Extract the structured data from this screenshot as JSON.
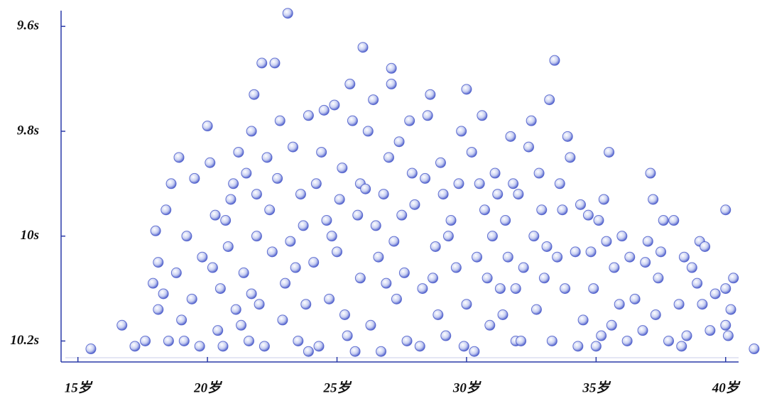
{
  "chart_data": {
    "type": "scatter",
    "color": "#4455c8",
    "xlim": [
      14.35,
      40.5
    ],
    "ylim": [
      10.24,
      9.57
    ],
    "xticks": [
      {
        "value": 15,
        "label": "15岁"
      },
      {
        "value": 20,
        "label": "20岁"
      },
      {
        "value": 25,
        "label": "25岁"
      },
      {
        "value": 30,
        "label": "30岁"
      },
      {
        "value": 35,
        "label": "35岁"
      },
      {
        "value": 40,
        "label": "40岁"
      }
    ],
    "yticks": [
      {
        "value": 9.6,
        "label": "9.6s"
      },
      {
        "value": 9.8,
        "label": "9.8s"
      },
      {
        "value": 10,
        "label": "10s"
      },
      {
        "value": 10.2,
        "label": "10.2s"
      }
    ],
    "x": [
      16.7,
      17.2,
      17.6,
      18.1,
      18.1,
      18.3,
      18.5,
      18.9,
      18.8,
      18.6,
      19.0,
      19.2,
      19.5,
      19.4,
      19.7,
      19.8,
      18.0,
      17.9,
      18.4,
      19.1,
      20.0,
      20.1,
      20.3,
      20.5,
      20.4,
      20.8,
      20.9,
      21.1,
      21.2,
      21.4,
      21.5,
      21.6,
      21.7,
      21.8,
      21.9,
      20.6,
      20.2,
      21.0,
      21.3,
      20.7,
      21.7,
      21.9,
      22.1,
      22.6,
      22.3,
      22.5,
      22.8,
      22.2,
      22.9,
      22.4,
      23.0,
      23.1,
      23.3,
      23.5,
      23.6,
      23.8,
      23.9,
      23.2,
      22.7,
      23.4,
      23.7,
      22.0,
      23.9,
      24.2,
      24.5,
      24.7,
      24.9,
      25.0,
      25.2,
      25.4,
      25.6,
      25.8,
      25.9,
      25.5,
      24.3,
      24.6,
      24.1,
      25.1,
      25.3,
      24.8,
      25.7,
      24.4,
      25.9,
      26.0,
      26.2,
      26.4,
      26.6,
      26.8,
      27.0,
      27.1,
      27.1,
      27.3,
      27.5,
      27.7,
      27.9,
      26.3,
      26.5,
      26.9,
      27.2,
      27.4,
      27.6,
      26.1,
      27.8,
      26.7,
      28.0,
      28.3,
      28.5,
      28.6,
      28.8,
      29.0,
      29.2,
      29.4,
      29.6,
      29.8,
      30.0,
      30.0,
      28.2,
      28.4,
      28.9,
      29.1,
      29.3,
      29.7,
      29.9,
      28.7,
      30.2,
      30.4,
      30.6,
      30.7,
      30.9,
      31.1,
      31.3,
      31.5,
      31.7,
      31.9,
      30.3,
      30.8,
      31.0,
      31.2,
      31.4,
      31.6,
      31.8,
      30.5,
      31.9,
      32.0,
      32.2,
      32.4,
      32.5,
      32.7,
      32.9,
      33.1,
      33.2,
      33.4,
      33.3,
      33.6,
      33.8,
      33.9,
      32.1,
      32.6,
      33.0,
      33.5,
      33.7,
      32.8,
      34.0,
      34.2,
      34.4,
      34.5,
      34.7,
      34.9,
      35.1,
      35.2,
      35.3,
      35.5,
      35.7,
      35.9,
      34.3,
      34.8,
      35.0,
      35.6,
      35.4,
      36.0,
      36.3,
      36.5,
      36.8,
      37.0,
      37.1,
      37.2,
      37.4,
      37.6,
      37.8,
      36.2,
      36.9,
      37.3,
      37.5,
      38.0,
      38.2,
      38.4,
      38.5,
      38.9,
      39.0,
      39.1,
      39.4,
      39.6,
      40.0,
      40.0,
      40.1,
      40.2,
      40.3,
      38.3,
      38.7,
      39.2,
      40.0,
      15.5,
      41.1
    ],
    "values": [
      10.17,
      10.21,
      10.2,
      10.05,
      10.14,
      10.11,
      10.2,
      9.85,
      10.07,
      9.9,
      10.16,
      10.0,
      9.89,
      10.12,
      10.21,
      10.04,
      9.99,
      10.09,
      9.95,
      10.2,
      9.79,
      9.86,
      9.96,
      10.1,
      10.18,
      10.02,
      9.93,
      10.14,
      9.84,
      10.07,
      9.88,
      10.2,
      9.8,
      9.73,
      10.0,
      10.21,
      10.06,
      9.9,
      10.17,
      9.97,
      10.11,
      9.92,
      9.67,
      9.67,
      9.85,
      10.03,
      9.78,
      10.21,
      10.16,
      9.95,
      10.09,
      9.575,
      9.83,
      10.2,
      9.92,
      10.13,
      9.77,
      10.01,
      9.89,
      10.06,
      9.98,
      10.13,
      10.22,
      9.9,
      9.76,
      10.12,
      9.75,
      10.03,
      9.87,
      10.19,
      9.78,
      9.96,
      10.08,
      9.71,
      10.21,
      9.97,
      10.05,
      9.93,
      10.15,
      10.0,
      10.22,
      9.84,
      9.9,
      9.64,
      9.8,
      9.74,
      10.04,
      9.92,
      9.85,
      9.68,
      9.71,
      10.12,
      9.96,
      10.2,
      9.88,
      10.17,
      9.98,
      10.09,
      10.01,
      9.82,
      10.07,
      9.91,
      9.78,
      10.22,
      9.94,
      10.1,
      9.77,
      9.73,
      10.02,
      9.86,
      10.19,
      9.97,
      10.06,
      9.8,
      9.72,
      10.13,
      10.21,
      9.89,
      10.15,
      9.92,
      10.0,
      9.9,
      10.21,
      10.08,
      9.84,
      10.04,
      9.77,
      9.95,
      10.17,
      9.88,
      10.1,
      9.97,
      9.81,
      10.2,
      10.22,
      10.08,
      10.0,
      9.92,
      10.15,
      10.04,
      9.9,
      9.9,
      10.1,
      9.92,
      10.06,
      9.83,
      9.78,
      10.14,
      9.95,
      10.02,
      9.74,
      9.665,
      10.2,
      9.9,
      10.1,
      9.81,
      10.2,
      10.0,
      10.08,
      10.04,
      9.95,
      9.88,
      9.85,
      10.03,
      9.94,
      10.16,
      9.96,
      10.1,
      9.97,
      10.19,
      9.93,
      9.84,
      10.06,
      10.13,
      10.21,
      10.03,
      10.21,
      10.17,
      10.01,
      10.0,
      10.04,
      10.12,
      10.18,
      10.01,
      9.88,
      9.93,
      10.08,
      9.97,
      10.2,
      10.2,
      10.05,
      10.15,
      10.03,
      9.97,
      10.13,
      10.04,
      10.19,
      10.09,
      10.01,
      10.13,
      10.18,
      10.11,
      9.95,
      10.1,
      10.19,
      10.14,
      10.08,
      10.21,
      10.06,
      10.02,
      10.17,
      10.215,
      10.215
    ]
  }
}
